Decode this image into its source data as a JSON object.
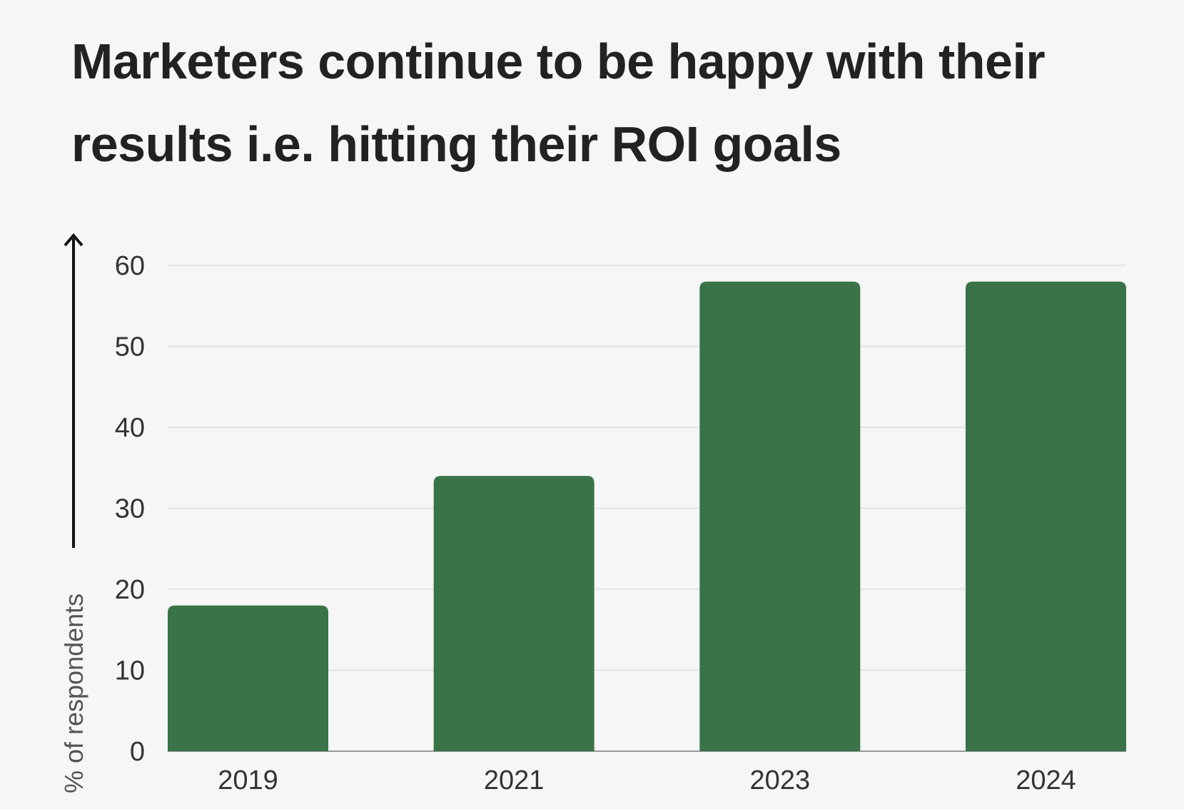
{
  "chart_data": {
    "type": "bar",
    "title": "Marketers continue to be happy with their results i.e. hitting their ROI goals",
    "categories": [
      "2019",
      "2021",
      "2023",
      "2024"
    ],
    "values": [
      18,
      34,
      58,
      58
    ],
    "xlabel": "",
    "ylabel": "% of respondents",
    "ylim": [
      0,
      60
    ],
    "yticks": [
      0,
      10,
      20,
      30,
      40,
      50,
      60
    ],
    "grid": true,
    "bar_color": "#3a7347"
  }
}
